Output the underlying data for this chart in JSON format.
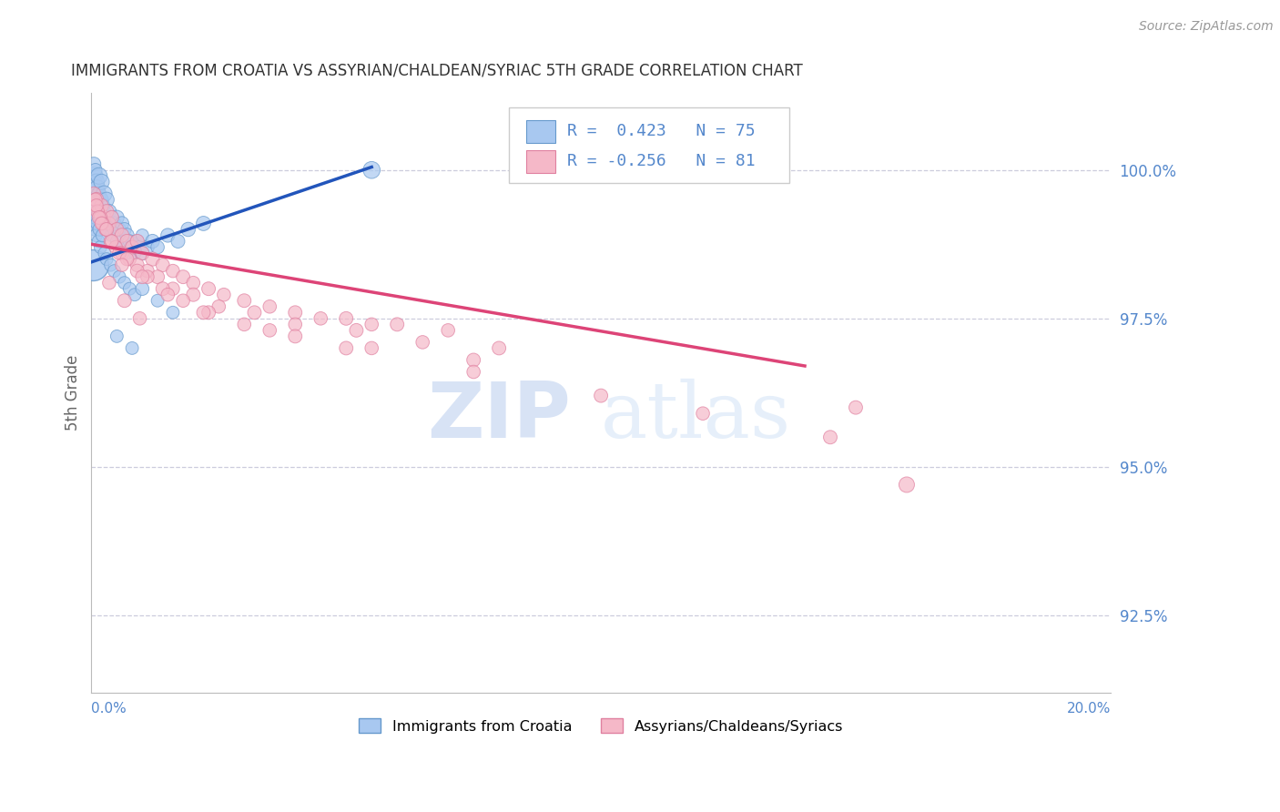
{
  "title": "IMMIGRANTS FROM CROATIA VS ASSYRIAN/CHALDEAN/SYRIAC 5TH GRADE CORRELATION CHART",
  "source": "Source: ZipAtlas.com",
  "ylabel": "5th Grade",
  "xlim": [
    0.0,
    20.0
  ],
  "ylim": [
    91.2,
    101.3
  ],
  "yticks": [
    92.5,
    95.0,
    97.5,
    100.0
  ],
  "ytick_labels": [
    "92.5%",
    "95.0%",
    "97.5%",
    "100.0%"
  ],
  "croatia_color": "#a8c8f0",
  "croatia_edge": "#6699cc",
  "assyrian_color": "#f5b8c8",
  "assyrian_edge": "#e080a0",
  "trend_blue": "#2255bb",
  "trend_pink": "#dd4477",
  "R_croatia": 0.423,
  "N_croatia": 75,
  "R_assyrian": -0.256,
  "N_assyrian": 81,
  "legend_label_croatia": "Immigrants from Croatia",
  "legend_label_assyrian": "Assyrians/Chaldeans/Syriacs",
  "watermark_zip": "ZIP",
  "watermark_atlas": "atlas",
  "background_color": "#ffffff",
  "grid_color": "#ccccdd",
  "axis_label_color": "#5588cc",
  "title_color": "#333333",
  "source_color": "#999999",
  "blue_trend_x0": 0.0,
  "blue_trend_y0": 98.45,
  "blue_trend_x1": 5.5,
  "blue_trend_y1": 100.05,
  "pink_trend_x0": 0.0,
  "pink_trend_y0": 98.75,
  "pink_trend_x1": 14.0,
  "pink_trend_y1": 96.7,
  "croatia_points_x": [
    0.05,
    0.05,
    0.05,
    0.08,
    0.08,
    0.08,
    0.1,
    0.1,
    0.12,
    0.12,
    0.15,
    0.15,
    0.18,
    0.18,
    0.2,
    0.2,
    0.2,
    0.22,
    0.25,
    0.25,
    0.28,
    0.3,
    0.3,
    0.35,
    0.35,
    0.4,
    0.4,
    0.45,
    0.5,
    0.5,
    0.55,
    0.6,
    0.6,
    0.65,
    0.7,
    0.7,
    0.75,
    0.8,
    0.85,
    0.9,
    0.95,
    1.0,
    1.0,
    1.1,
    1.2,
    1.3,
    1.5,
    1.7,
    1.9,
    2.2,
    0.05,
    0.05,
    0.07,
    0.07,
    0.09,
    0.09,
    0.12,
    0.14,
    0.16,
    0.18,
    0.22,
    0.26,
    0.3,
    0.38,
    0.45,
    0.55,
    0.65,
    0.75,
    0.85,
    1.0,
    1.3,
    1.6,
    0.5,
    0.8,
    5.5
  ],
  "croatia_points_y": [
    99.9,
    99.8,
    100.1,
    99.7,
    99.6,
    100.0,
    99.8,
    99.5,
    99.7,
    99.4,
    99.9,
    99.6,
    99.5,
    99.3,
    99.8,
    99.5,
    99.2,
    99.4,
    99.6,
    99.3,
    99.2,
    99.5,
    99.1,
    99.3,
    99.0,
    99.2,
    98.9,
    99.1,
    99.2,
    98.8,
    99.0,
    99.1,
    98.7,
    99.0,
    98.9,
    98.6,
    98.8,
    98.7,
    98.6,
    98.8,
    98.7,
    98.6,
    98.9,
    98.7,
    98.8,
    98.7,
    98.9,
    98.8,
    99.0,
    99.1,
    99.4,
    99.1,
    99.3,
    99.0,
    99.2,
    98.9,
    99.1,
    98.8,
    99.0,
    98.7,
    98.9,
    98.6,
    98.5,
    98.4,
    98.3,
    98.2,
    98.1,
    98.0,
    97.9,
    98.0,
    97.8,
    97.6,
    97.2,
    97.0,
    100.0
  ],
  "croatia_sizes": [
    200,
    150,
    120,
    180,
    130,
    110,
    160,
    140,
    150,
    120,
    170,
    130,
    140,
    110,
    150,
    120,
    100,
    130,
    160,
    110,
    120,
    140,
    100,
    130,
    110,
    120,
    100,
    115,
    130,
    100,
    110,
    120,
    100,
    115,
    125,
    100,
    110,
    120,
    100,
    115,
    110,
    120,
    100,
    115,
    120,
    110,
    120,
    115,
    125,
    130,
    140,
    110,
    130,
    105,
    120,
    100,
    115,
    100,
    110,
    100,
    110,
    100,
    100,
    100,
    100,
    100,
    100,
    100,
    100,
    110,
    100,
    100,
    100,
    100,
    180
  ],
  "assyrian_points_x": [
    0.05,
    0.08,
    0.1,
    0.15,
    0.2,
    0.25,
    0.3,
    0.35,
    0.4,
    0.5,
    0.6,
    0.7,
    0.8,
    0.9,
    1.0,
    1.2,
    1.4,
    1.6,
    1.8,
    2.0,
    2.3,
    2.6,
    3.0,
    3.5,
    4.0,
    4.5,
    5.0,
    5.5,
    6.0,
    7.0,
    0.08,
    0.12,
    0.18,
    0.22,
    0.28,
    0.38,
    0.48,
    0.6,
    0.75,
    0.9,
    1.1,
    1.3,
    1.6,
    2.0,
    2.5,
    3.2,
    4.0,
    5.2,
    6.5,
    8.0,
    0.1,
    0.15,
    0.2,
    0.3,
    0.4,
    0.55,
    0.7,
    0.9,
    1.1,
    1.4,
    1.8,
    2.3,
    3.0,
    4.0,
    5.5,
    7.5,
    0.6,
    1.0,
    1.5,
    2.2,
    3.5,
    5.0,
    7.5,
    10.0,
    12.0,
    14.5,
    15.0,
    0.35,
    0.65,
    0.95,
    16.0
  ],
  "assyrian_points_y": [
    99.6,
    99.4,
    99.5,
    99.3,
    99.4,
    99.2,
    99.3,
    99.1,
    99.2,
    99.0,
    98.9,
    98.8,
    98.7,
    98.8,
    98.6,
    98.5,
    98.4,
    98.3,
    98.2,
    98.1,
    98.0,
    97.9,
    97.8,
    97.7,
    97.6,
    97.5,
    97.5,
    97.4,
    97.4,
    97.3,
    99.5,
    99.3,
    99.2,
    99.1,
    99.0,
    98.8,
    98.7,
    98.6,
    98.5,
    98.4,
    98.3,
    98.2,
    98.0,
    97.9,
    97.7,
    97.6,
    97.4,
    97.3,
    97.1,
    97.0,
    99.4,
    99.2,
    99.1,
    99.0,
    98.8,
    98.6,
    98.5,
    98.3,
    98.2,
    98.0,
    97.8,
    97.6,
    97.4,
    97.2,
    97.0,
    96.8,
    98.4,
    98.2,
    97.9,
    97.6,
    97.3,
    97.0,
    96.6,
    96.2,
    95.9,
    95.5,
    96.0,
    98.1,
    97.8,
    97.5,
    94.7
  ],
  "assyrian_sizes": [
    120,
    110,
    130,
    115,
    120,
    110,
    125,
    110,
    120,
    115,
    125,
    120,
    115,
    120,
    115,
    120,
    115,
    110,
    115,
    110,
    115,
    110,
    115,
    110,
    115,
    110,
    115,
    110,
    115,
    110,
    110,
    115,
    110,
    115,
    110,
    115,
    110,
    115,
    110,
    115,
    110,
    115,
    110,
    115,
    110,
    115,
    110,
    115,
    110,
    115,
    110,
    115,
    110,
    115,
    110,
    115,
    110,
    115,
    110,
    115,
    110,
    115,
    110,
    115,
    110,
    115,
    110,
    115,
    110,
    115,
    110,
    115,
    110,
    115,
    110,
    115,
    115,
    110,
    115,
    110,
    150
  ]
}
